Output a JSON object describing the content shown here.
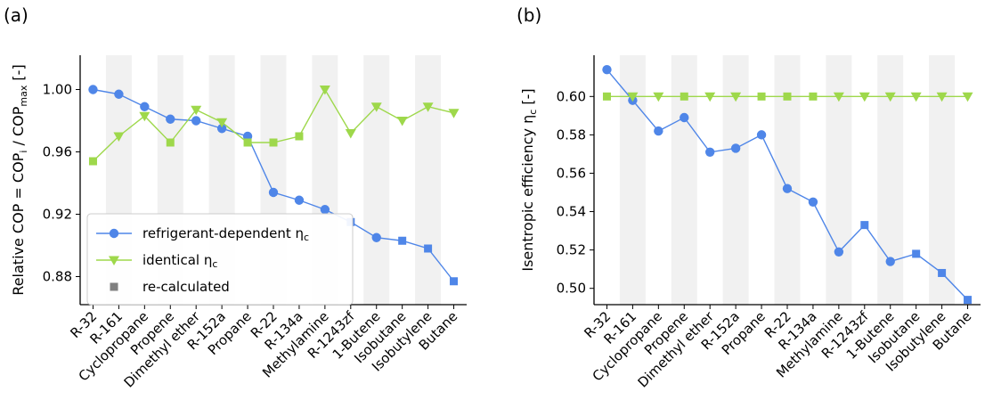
{
  "chart_data": [
    {
      "panel_label": "(a)",
      "type": "line",
      "ylabel": "Relative COP = COP",
      "ylabel_sub": "i",
      "ylabel_mid": " / COP",
      "ylabel_sub2": "max",
      "ylabel_unit": " [-]",
      "categories": [
        "R-32",
        "R-161",
        "Cyclopropane",
        "Propene",
        "Dimethyl ether",
        "R-152a",
        "Propane",
        "R-22",
        "R-134a",
        "Methylamine",
        "R-1243zf",
        "1-Butene",
        "Isobutane",
        "Isobutylene",
        "Butane"
      ],
      "ylim": [
        0.862,
        1.022
      ],
      "yticks": [
        "0.88",
        "0.92",
        "0.96",
        "1.00"
      ],
      "ytick_values": [
        0.88,
        0.92,
        0.96,
        1.0
      ],
      "series": [
        {
          "name": "refrigerant-dependent ηc",
          "color": "#4f86e8",
          "values": [
            1.0,
            0.997,
            0.989,
            0.981,
            0.98,
            0.975,
            0.97,
            0.934,
            0.929,
            0.923,
            0.915,
            0.905,
            0.903,
            0.898,
            0.877
          ],
          "marker_types": [
            "circle",
            "circle",
            "circle",
            "circle",
            "circle",
            "circle",
            "circle",
            "circle",
            "circle",
            "circle",
            "square",
            "circle",
            "square",
            "square",
            "square"
          ]
        },
        {
          "name": "identical ηc",
          "color": "#9ed84b",
          "values": [
            0.954,
            0.97,
            0.983,
            0.966,
            0.987,
            0.979,
            0.966,
            0.966,
            0.97,
            1.0,
            0.972,
            0.989,
            0.98,
            0.989,
            0.985
          ],
          "marker_types": [
            "square",
            "tri",
            "tri",
            "square",
            "tri",
            "tri",
            "square",
            "square",
            "square",
            "tri",
            "tri",
            "tri",
            "tri",
            "tri",
            "tri"
          ]
        }
      ],
      "legend": {
        "placement": "lower-left",
        "entries": [
          {
            "label": "refrigerant-dependent η",
            "sub": "c",
            "marker": "circle",
            "color": "#4f86e8"
          },
          {
            "label": "identical η",
            "sub": "c",
            "marker": "tri",
            "color": "#9ed84b"
          },
          {
            "label": "re-calculated",
            "sub": "",
            "marker": "square",
            "color": "#808080"
          }
        ]
      },
      "grid": "alternating vertical bands"
    },
    {
      "panel_label": "(b)",
      "type": "line",
      "ylabel": "Isentropic efficiency η",
      "ylabel_sub": "c",
      "ylabel_unit": " [-]",
      "categories": [
        "R-32",
        "R-161",
        "Cyclopropane",
        "Propene",
        "Dimethyl ether",
        "R-152a",
        "Propane",
        "R-22",
        "R-134a",
        "Methylamine",
        "R-1243zf",
        "1-Butene",
        "Isobutane",
        "Isobutylene",
        "Butane"
      ],
      "ylim": [
        0.4915,
        0.6215
      ],
      "yticks": [
        "0.50",
        "0.52",
        "0.54",
        "0.56",
        "0.58",
        "0.60"
      ],
      "ytick_values": [
        0.5,
        0.52,
        0.54,
        0.56,
        0.58,
        0.6
      ],
      "series": [
        {
          "name": "refrigerant-dependent ηc",
          "color": "#4f86e8",
          "values": [
            0.614,
            0.598,
            0.582,
            0.589,
            0.571,
            0.573,
            0.58,
            0.552,
            0.545,
            0.519,
            0.533,
            0.514,
            0.518,
            0.508,
            0.494
          ],
          "marker_types": [
            "circle",
            "circle",
            "circle",
            "circle",
            "circle",
            "circle",
            "circle",
            "circle",
            "circle",
            "circle",
            "square",
            "circle",
            "square",
            "square",
            "square"
          ]
        },
        {
          "name": "identical ηc",
          "color": "#9ed84b",
          "values": [
            0.6,
            0.6,
            0.6,
            0.6,
            0.6,
            0.6,
            0.6,
            0.6,
            0.6,
            0.6,
            0.6,
            0.6,
            0.6,
            0.6,
            0.6
          ],
          "marker_types": [
            "square",
            "tri",
            "tri",
            "square",
            "tri",
            "tri",
            "square",
            "square",
            "square",
            "tri",
            "tri",
            "tri",
            "tri",
            "tri",
            "tri"
          ]
        }
      ],
      "grid": "alternating vertical bands"
    }
  ]
}
